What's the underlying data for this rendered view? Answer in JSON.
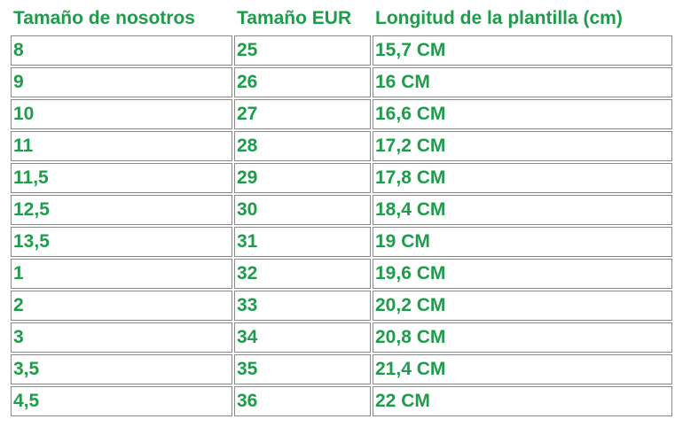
{
  "table": {
    "header": [
      "Tamaño de nosotros",
      "Tamaño EUR",
      "Longitud de la plantilla (cm)"
    ],
    "rows": [
      [
        "8",
        "25",
        "15,7 CM"
      ],
      [
        "9",
        "26",
        "16 CM"
      ],
      [
        "10",
        "27",
        "16,6 CM"
      ],
      [
        "11",
        "28",
        "17,2 CM"
      ],
      [
        "11,5",
        "29",
        "17,8 CM"
      ],
      [
        "12,5",
        "30",
        "18,4 CM"
      ],
      [
        "13,5",
        "31",
        "19 CM"
      ],
      [
        "1",
        "32",
        "19,6 CM"
      ],
      [
        "2",
        "33",
        "20,2 CM"
      ],
      [
        "3",
        "34",
        "20,8 CM"
      ],
      [
        "3,5",
        "35",
        "21,4 CM"
      ],
      [
        "4,5",
        "36",
        "22 CM"
      ]
    ]
  }
}
